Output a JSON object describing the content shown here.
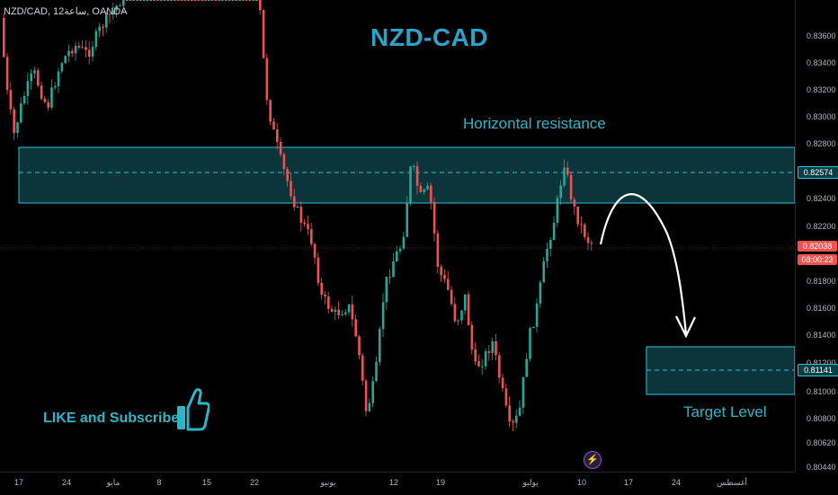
{
  "header": {
    "symbol": "NZD/CAD, 12ساعة, OANDA",
    "title": "NZD-CAD"
  },
  "annotations": {
    "resistance": "Horizontal resistance",
    "target": "Target Level",
    "like_subscribe": "LIKE and Subscribe"
  },
  "price_axis": {
    "ticks": [
      "0.83600",
      "0.83400",
      "0.83200",
      "0.83000",
      "0.82800",
      "0.82400",
      "0.82200",
      "0.81800",
      "0.81600",
      "0.81400",
      "0.81200",
      "0.81000",
      "0.80800",
      "0.80620",
      "0.80440"
    ],
    "resistance_price": "0.82574",
    "current_price": "0.82038",
    "countdown": "08:00:23",
    "target_price": "0.81141"
  },
  "time_axis": {
    "ticks": [
      "17",
      "24",
      "مايو",
      "8",
      "15",
      "22",
      "يونيو",
      "12",
      "19",
      "يوليو",
      "10",
      "17",
      "24",
      "أغسطس"
    ]
  },
  "colors": {
    "bull": "#26a69a",
    "bear": "#ef5350",
    "zone_border": "#26c6da",
    "zone_fill": "#0d3d45",
    "accent": "#29b6c9"
  },
  "icons": [
    "thumbs-up-icon",
    "lightning-icon"
  ]
}
